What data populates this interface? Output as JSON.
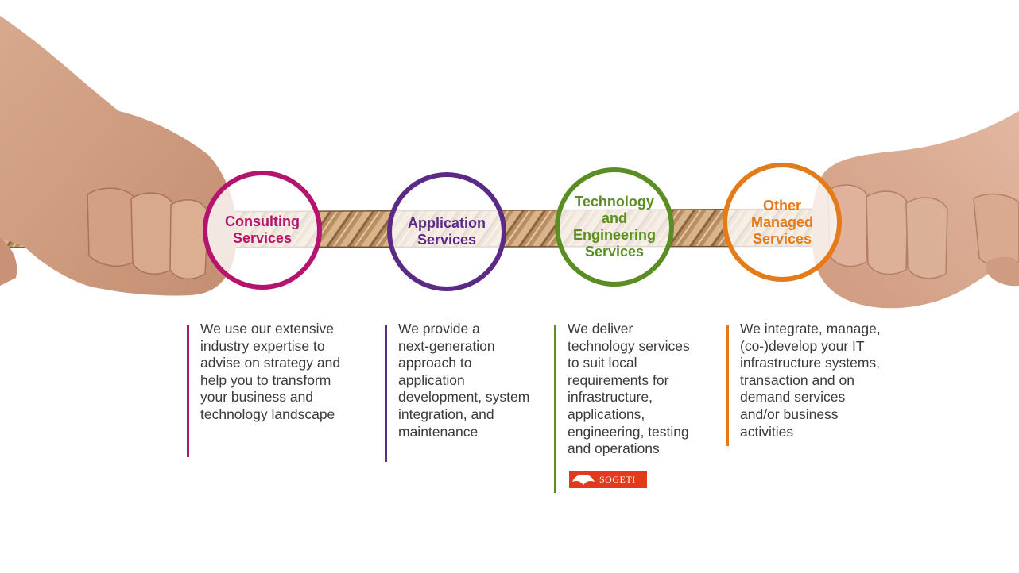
{
  "colors": {
    "consulting": "#b5146e",
    "application": "#5b2a86",
    "technology": "#5a8e22",
    "managed": "#e47a18",
    "logo_red": "#e23b1c"
  },
  "services": [
    {
      "title": "Consulting\nServices",
      "description": "We use our extensive\nindustry expertise to\nadvise on strategy and\nhelp you to transform\nyour business  and\ntechnology landscape"
    },
    {
      "title": "Application\nServices",
      "description": "We provide a\nnext-generation\napproach to\napplication\ndevelopment, system\nintegration, and\nmaintenance"
    },
    {
      "title": "Technology\nand\nEngineering\nServices",
      "description": "We deliver\ntechnology services\nto suit local\nrequirements for\ninfrastructure,\napplications,\nengineering, testing\nand operations"
    },
    {
      "title": "Other\nManaged\nServices",
      "description": "We integrate, manage,\n(co-)develop your IT\ninfrastructure systems,\ntransaction and on\ndemand services\nand/or business\nactivities"
    }
  ],
  "logo": {
    "text": "SOGETI",
    "icon": "spade-card-logo-icon"
  },
  "images": {
    "background": "hands-pulling-rope-photo"
  }
}
